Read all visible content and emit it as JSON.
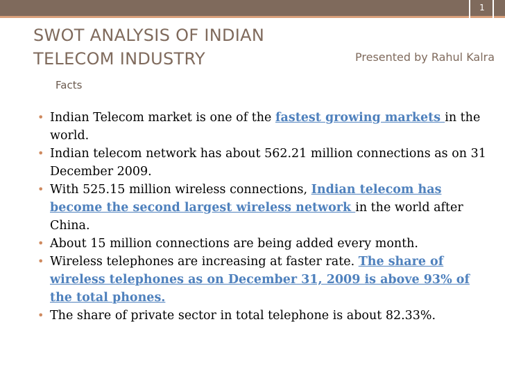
{
  "slide": {
    "number": "1",
    "title_line1": "SWOT ANALYSIS OF INDIAN",
    "title_line2": "TELECOM INDUSTRY",
    "presenter": "Presented by Rahul Kalra",
    "subheading": "Facts"
  },
  "colors": {
    "topbar": "#7f6a5c",
    "accent": "#d9a07b",
    "title": "#7f6a5c",
    "link": "#4f81bd",
    "bullet": "#cf8a5f"
  },
  "bullets": [
    {
      "pre": "Indian Telecom market is one of the ",
      "link": "fastest growing markets ",
      "post": "in the world."
    },
    {
      "text": "Indian telecom network has about 562.21 million connections as on 31 December 2009."
    },
    {
      "pre": "With 525.15 million wireless connections, ",
      "link": "Indian telecom has become the second largest wireless network ",
      "post": "in the world after China."
    },
    {
      "text": "About 15 million connections are being added every month."
    },
    {
      "pre": "Wireless telephones are increasing at faster rate. ",
      "link": "The share of wireless telephones as on December 31, 2009 is above 93% of the total phones.",
      "post": ""
    },
    {
      "text": "The share of private sector in total telephone is about 82.33%."
    }
  ]
}
